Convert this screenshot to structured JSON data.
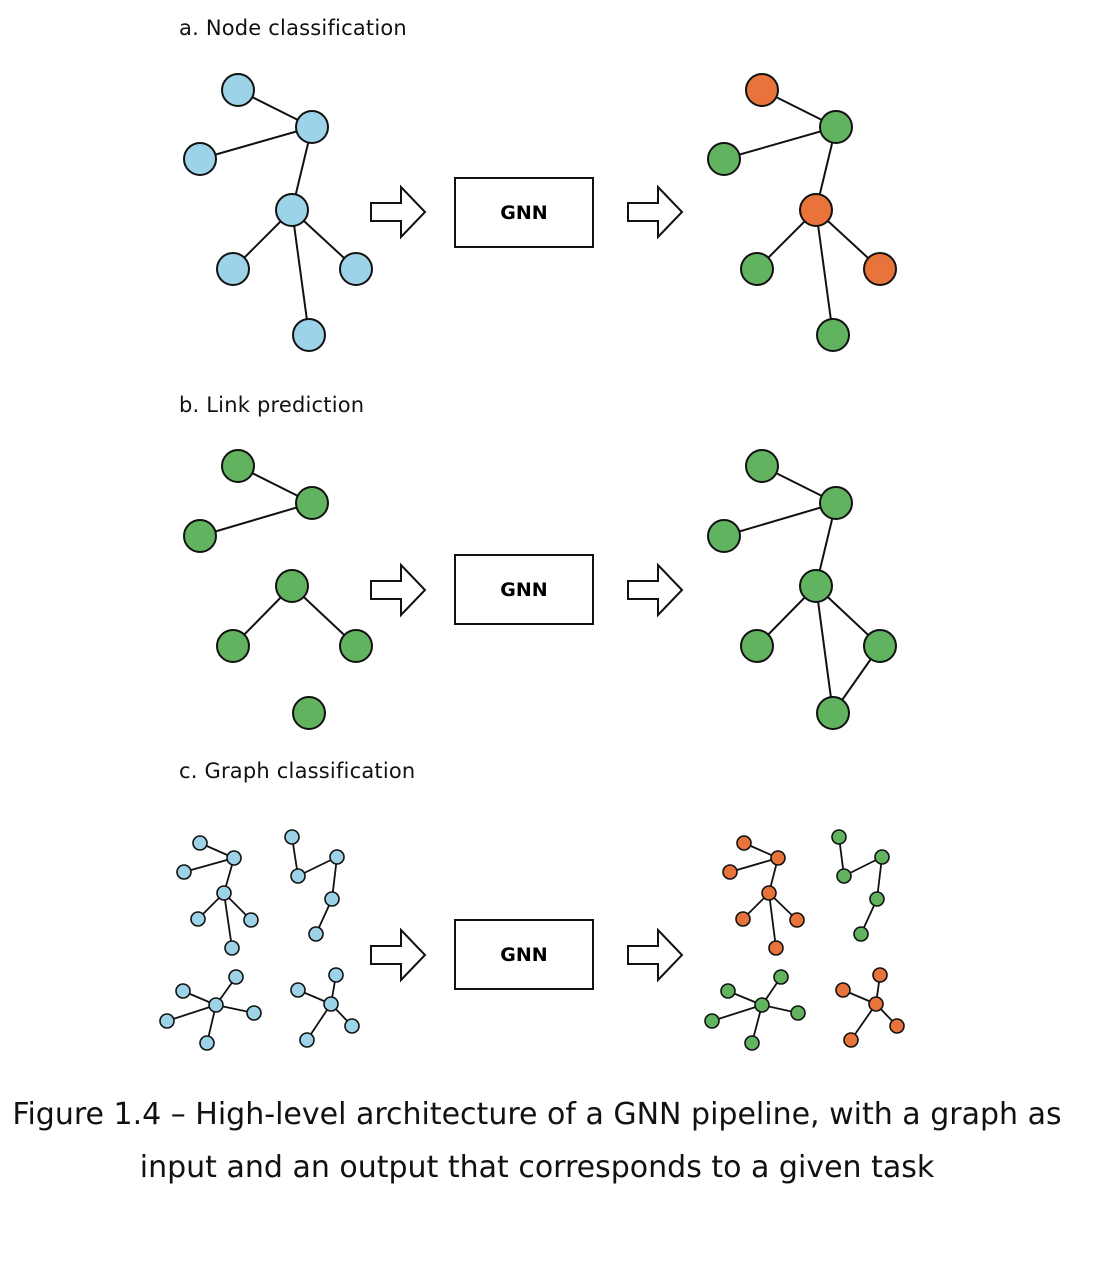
{
  "sections": {
    "a": {
      "label": "a.  Node classification",
      "box_label": "GNN"
    },
    "b": {
      "label": "b.  Link prediction",
      "box_label": "GNN"
    },
    "c": {
      "label": "c.  Graph classification",
      "box_label": "GNN"
    }
  },
  "caption": {
    "line1": "Figure 1.4 – High-level architecture of a GNN pipeline, with a graph as",
    "line2": "input and an output that corresponds to a given task"
  },
  "colors": {
    "blue_node": "#9dd3e8",
    "green_node": "#62b35f",
    "orange_node": "#e8743b",
    "stroke": "#111111"
  }
}
